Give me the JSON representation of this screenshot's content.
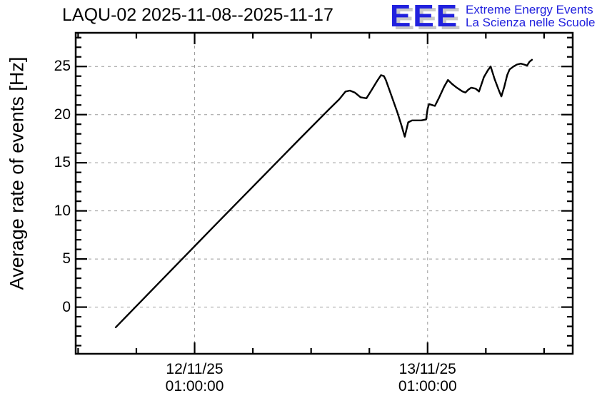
{
  "header": {
    "title": "LAQU-02 2025-11-08--2025-11-17",
    "logo": {
      "acronym": "EEE",
      "line1": "Extreme Energy Events",
      "line2": "La Scienza nelle Scuole",
      "text_color": "#2121de",
      "shadow_color": "#c9c9c9"
    }
  },
  "chart_data": {
    "type": "line",
    "title": "LAQU-02 2025-11-08--2025-11-17",
    "xlabel": "",
    "ylabel": "Average rate of events [Hz]",
    "x_unit": "hours relative to 12/11/25 01:00:00",
    "xlim": [
      -12.25,
      38.95
    ],
    "ylim": [
      -4.85,
      28.5
    ],
    "grid": true,
    "legend": false,
    "x_major_ticks": [
      {
        "t": 0,
        "label_lines": [
          "12/11/25",
          "01:00:00"
        ]
      },
      {
        "t": 24,
        "label_lines": [
          "13/11/25",
          "01:00:00"
        ]
      }
    ],
    "x_minor_step_hours": 6,
    "y_major_ticks": [
      0,
      5,
      10,
      15,
      20,
      25
    ],
    "y_minor_step": 1,
    "line_color": "#000000",
    "grid_color": "#9a9a9a",
    "frame_color": "#000000",
    "series": [
      {
        "name": "average-rate",
        "points": [
          [
            -8.13,
            -2.1
          ],
          [
            2.0,
            8.4
          ],
          [
            10.85,
            17.5
          ],
          [
            13.8,
            20.5
          ],
          [
            14.9,
            21.6
          ],
          [
            15.55,
            22.4
          ],
          [
            16.0,
            22.5
          ],
          [
            16.5,
            22.3
          ],
          [
            17.1,
            21.8
          ],
          [
            17.7,
            21.7
          ],
          [
            18.2,
            22.5
          ],
          [
            18.8,
            23.5
          ],
          [
            19.2,
            24.1
          ],
          [
            19.5,
            24.0
          ],
          [
            19.7,
            23.6
          ],
          [
            20.3,
            21.9
          ],
          [
            20.9,
            20.2
          ],
          [
            21.3,
            18.9
          ],
          [
            21.65,
            17.7
          ],
          [
            22.0,
            19.2
          ],
          [
            22.4,
            19.4
          ],
          [
            23.35,
            19.4
          ],
          [
            23.85,
            19.5
          ],
          [
            24.0,
            20.6
          ],
          [
            24.15,
            21.1
          ],
          [
            24.45,
            21.0
          ],
          [
            24.75,
            20.9
          ],
          [
            25.2,
            21.8
          ],
          [
            25.7,
            22.9
          ],
          [
            26.1,
            23.6
          ],
          [
            26.5,
            23.2
          ],
          [
            27.0,
            22.8
          ],
          [
            27.6,
            22.4
          ],
          [
            27.9,
            22.3
          ],
          [
            28.2,
            22.6
          ],
          [
            28.5,
            22.8
          ],
          [
            28.95,
            22.7
          ],
          [
            29.3,
            22.4
          ],
          [
            29.8,
            23.9
          ],
          [
            30.2,
            24.6
          ],
          [
            30.5,
            25.0
          ],
          [
            30.9,
            23.7
          ],
          [
            31.35,
            22.5
          ],
          [
            31.6,
            21.9
          ],
          [
            31.9,
            22.9
          ],
          [
            32.2,
            24.1
          ],
          [
            32.45,
            24.7
          ],
          [
            32.85,
            25.0
          ],
          [
            33.2,
            25.2
          ],
          [
            33.6,
            25.3
          ],
          [
            33.95,
            25.2
          ],
          [
            34.25,
            25.1
          ],
          [
            34.5,
            25.5
          ],
          [
            34.75,
            25.7
          ]
        ]
      }
    ]
  }
}
